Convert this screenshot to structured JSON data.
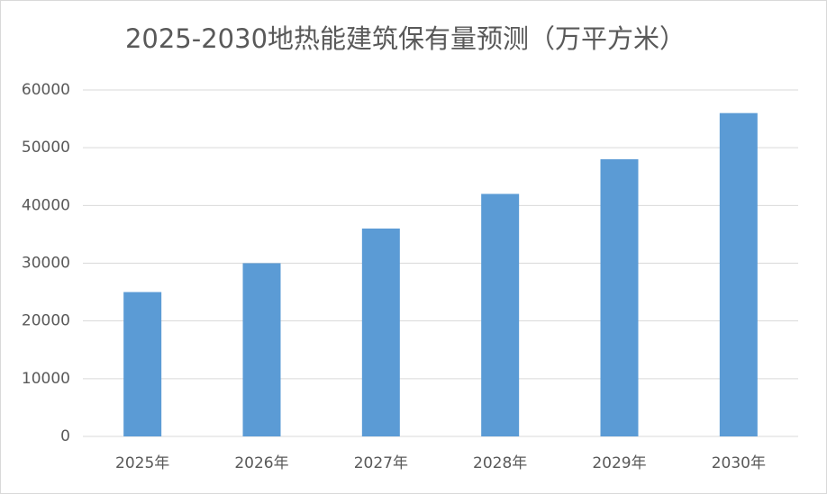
{
  "chart_data": {
    "type": "bar",
    "title": "2025-2030地热能建筑保有量预测（万平方米）",
    "categories": [
      "2025年",
      "2026年",
      "2027年",
      "2028年",
      "2029年",
      "2030年"
    ],
    "values": [
      25000,
      30000,
      36000,
      42000,
      48000,
      56000
    ],
    "color": "#5b9bd5",
    "ylim": [
      0,
      60000
    ],
    "yticks": [
      0,
      10000,
      20000,
      30000,
      40000,
      50000,
      60000
    ],
    "grid": true
  }
}
